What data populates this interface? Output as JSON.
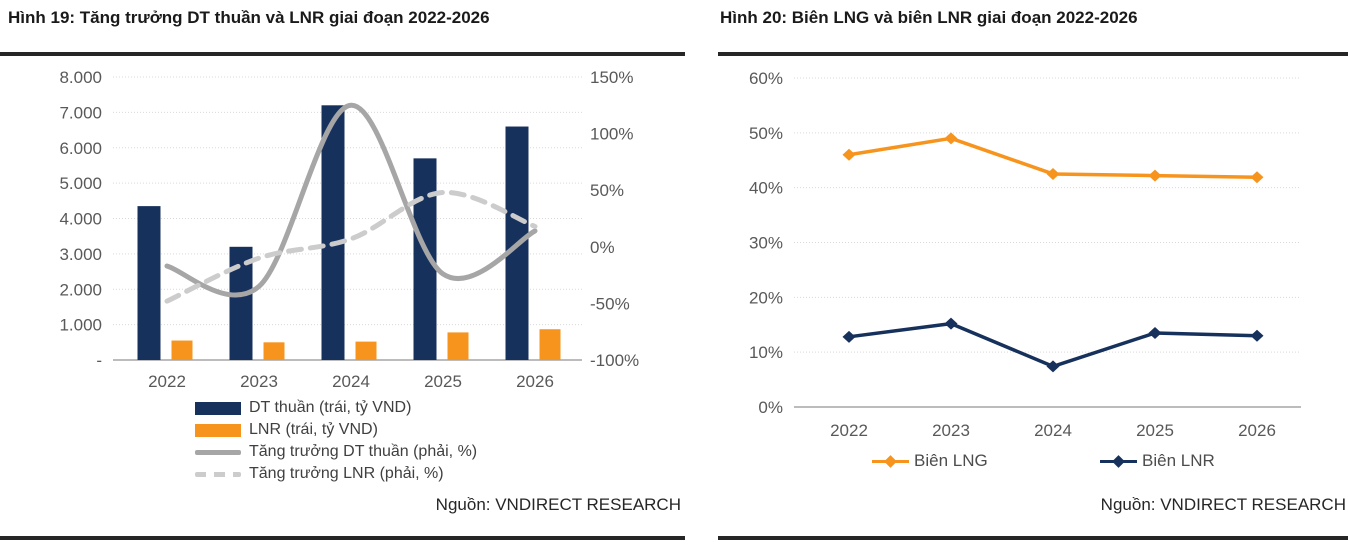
{
  "chart_data": [
    {
      "type": "combo-bar-line",
      "title": "Hình 19: Tăng trưởng DT thuần và LNR giai đoạn 2022-2026",
      "source": "Nguồn: VNDIRECT RESEARCH",
      "categories": [
        "2022",
        "2023",
        "2024",
        "2025",
        "2026"
      ],
      "grid": "horizontal-dotted",
      "legend_position": "bottom-left",
      "left_axis": {
        "unit": "tỷ VND",
        "min": 0,
        "max": 8000,
        "tick_values": [
          8000,
          7000,
          6000,
          5000,
          4000,
          3000,
          2000,
          1000,
          0
        ],
        "tick_labels": [
          "8.000",
          "7.000",
          "6.000",
          "5.000",
          "4.000",
          "3.000",
          "2.000",
          "1.000",
          "-"
        ]
      },
      "right_axis": {
        "unit": "%",
        "min": -100,
        "max": 150,
        "tick_values": [
          150,
          100,
          50,
          0,
          -50,
          -100
        ],
        "tick_labels": [
          "150%",
          "100%",
          "50%",
          "0%",
          "-50%",
          "-100%"
        ]
      },
      "series": [
        {
          "name": "DT thuần (trái, tỷ VND)",
          "render": "bar",
          "axis": "left",
          "color": "#17315d",
          "values": [
            4350,
            3200,
            7200,
            5700,
            6600
          ]
        },
        {
          "name": "LNR (trái, tỷ VND)",
          "render": "bar",
          "axis": "left",
          "color": "#f7941e",
          "values": [
            550,
            500,
            520,
            780,
            870
          ]
        },
        {
          "name": "Tăng trưởng DT thuần (phải, %)",
          "render": "line-solid",
          "axis": "right",
          "color": "#a6a6a6",
          "values": [
            -17,
            -35,
            125,
            -24,
            14
          ]
        },
        {
          "name": "Tăng trưởng LNR (phải, %)",
          "render": "line-dashed",
          "axis": "right",
          "color": "#cccccc",
          "values": [
            -48,
            -10,
            7,
            48,
            18
          ]
        }
      ]
    },
    {
      "type": "line",
      "title": "Hình 20: Biên LNG và biên LNR giai đoạn 2022-2026",
      "source": "Nguồn: VNDIRECT RESEARCH",
      "categories": [
        "2022",
        "2023",
        "2024",
        "2025",
        "2026"
      ],
      "grid": "horizontal-dotted",
      "legend_position": "bottom-center",
      "y_axis": {
        "unit": "%",
        "min": 0,
        "max": 60,
        "tick_values": [
          60,
          50,
          40,
          30,
          20,
          10,
          0
        ],
        "tick_labels": [
          "60%",
          "50%",
          "40%",
          "30%",
          "20%",
          "10%",
          "0%"
        ]
      },
      "series": [
        {
          "name": "Biên LNG",
          "marker": "diamond",
          "color": "#f7941e",
          "values": [
            46,
            49,
            42.5,
            42.2,
            41.9
          ]
        },
        {
          "name": "Biên LNR",
          "marker": "diamond",
          "color": "#17315d",
          "values": [
            12.8,
            15.2,
            7.4,
            13.5,
            13
          ]
        }
      ]
    }
  ]
}
